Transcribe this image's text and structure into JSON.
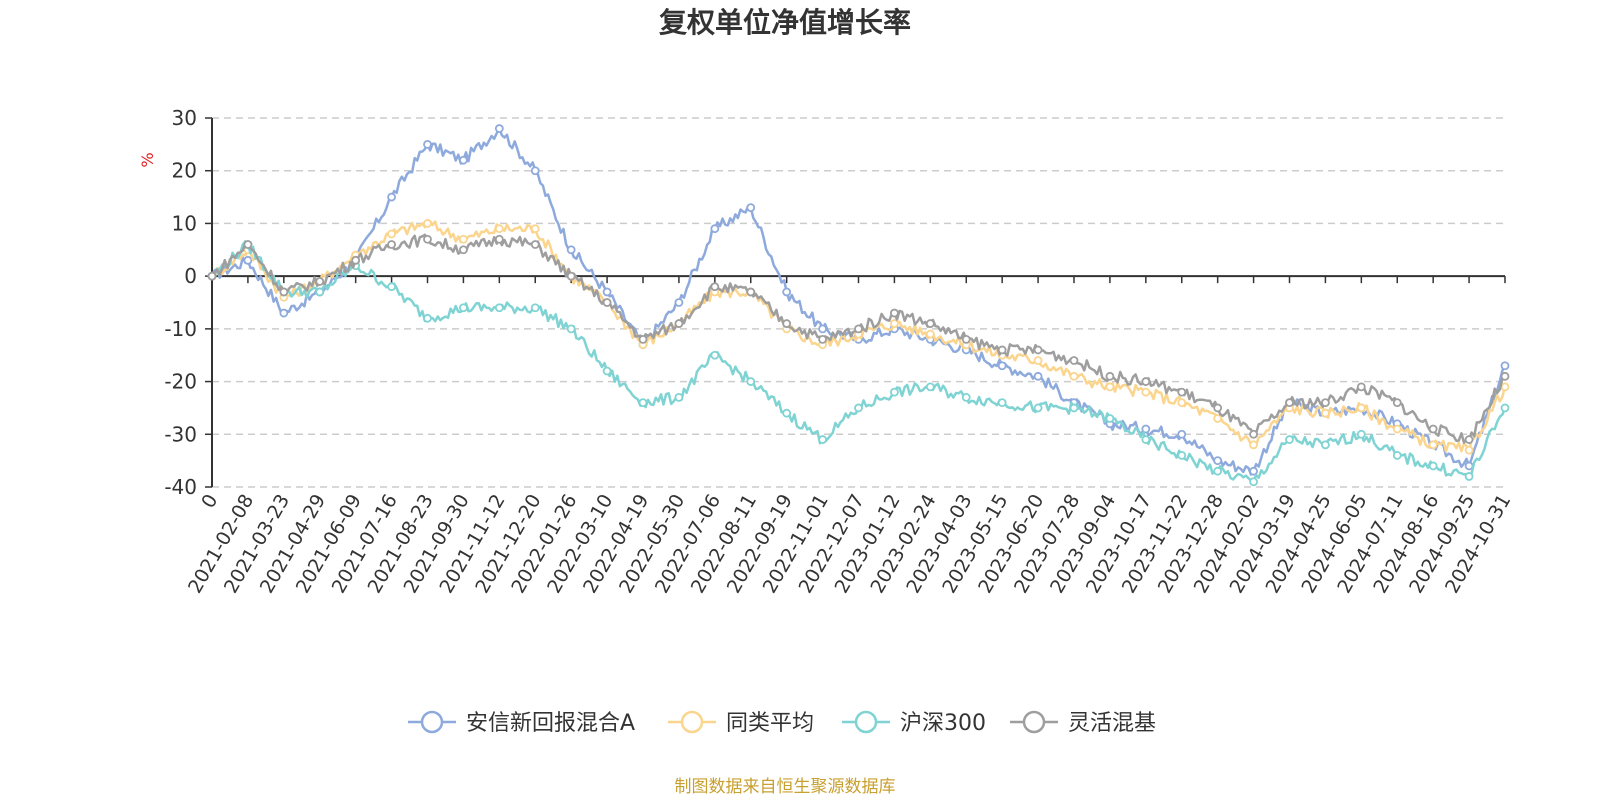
{
  "chart_data": {
    "type": "line",
    "title": "复权单位净值增长率",
    "ylabel": "%",
    "ylim": [
      -40,
      30
    ],
    "yticks": [
      30,
      20,
      10,
      0,
      -10,
      -20,
      -30,
      -40
    ],
    "grid": true,
    "legend_position": "bottom-center",
    "source": "制图数据来自恒生聚源数据库",
    "x_labels": [
      "0",
      "2021-02-08",
      "2021-03-23",
      "2021-04-29",
      "2021-06-09",
      "2021-07-16",
      "2021-08-23",
      "2021-09-30",
      "2021-11-12",
      "2021-12-20",
      "2022-01-26",
      "2022-03-10",
      "2022-04-19",
      "2022-05-30",
      "2022-07-06",
      "2022-08-11",
      "2022-09-19",
      "2022-11-01",
      "2022-12-07",
      "2023-01-12",
      "2023-02-24",
      "2023-04-03",
      "2023-05-15",
      "2023-06-20",
      "2023-07-28",
      "2023-09-04",
      "2023-10-17",
      "2023-11-22",
      "2023-12-28",
      "2024-02-02",
      "2024-03-19",
      "2024-04-25",
      "2024-06-05",
      "2024-07-11",
      "2024-08-16",
      "2024-09-25",
      "2024-10-31"
    ],
    "series": [
      {
        "name": "安信新回报混合A",
        "color": "#8eaadc",
        "values": [
          0,
          3,
          -7,
          -3,
          3,
          15,
          25,
          22,
          28,
          20,
          5,
          -3,
          -13,
          -5,
          9,
          13,
          -3,
          -10,
          -12,
          -10,
          -12,
          -14,
          -17,
          -19,
          -24,
          -28,
          -29,
          -30,
          -35,
          -37,
          -24,
          -26,
          -25,
          -28,
          -32,
          -36,
          -17
        ]
      },
      {
        "name": "同类平均",
        "color": "#fbd58e",
        "values": [
          0,
          5,
          -4,
          -1,
          4,
          8,
          10,
          7,
          9,
          9,
          0,
          -5,
          -13,
          -9,
          -3,
          -3,
          -10,
          -13,
          -11,
          -9,
          -11,
          -13,
          -15,
          -16,
          -19,
          -21,
          -22,
          -24,
          -27,
          -32,
          -25,
          -26,
          -25,
          -29,
          -32,
          -33,
          -21
        ]
      },
      {
        "name": "沪深300",
        "color": "#7fd3d3",
        "values": [
          0,
          6,
          -3,
          -3,
          2,
          -2,
          -8,
          -6,
          -6,
          -6,
          -10,
          -18,
          -24,
          -23,
          -15,
          -20,
          -26,
          -31,
          -25,
          -22,
          -21,
          -23,
          -24,
          -25,
          -25,
          -27,
          -31,
          -34,
          -37,
          -39,
          -31,
          -32,
          -30,
          -34,
          -36,
          -38,
          -25
        ]
      },
      {
        "name": "灵活混基",
        "color": "#9e9e9e",
        "values": [
          0,
          6,
          -3,
          -1,
          3,
          6,
          7,
          5,
          7,
          6,
          0,
          -5,
          -12,
          -9,
          -2,
          -3,
          -9,
          -12,
          -10,
          -7,
          -9,
          -12,
          -14,
          -14,
          -16,
          -19,
          -20,
          -22,
          -25,
          -30,
          -24,
          -24,
          -21,
          -24,
          -29,
          -31,
          -19
        ]
      }
    ]
  }
}
